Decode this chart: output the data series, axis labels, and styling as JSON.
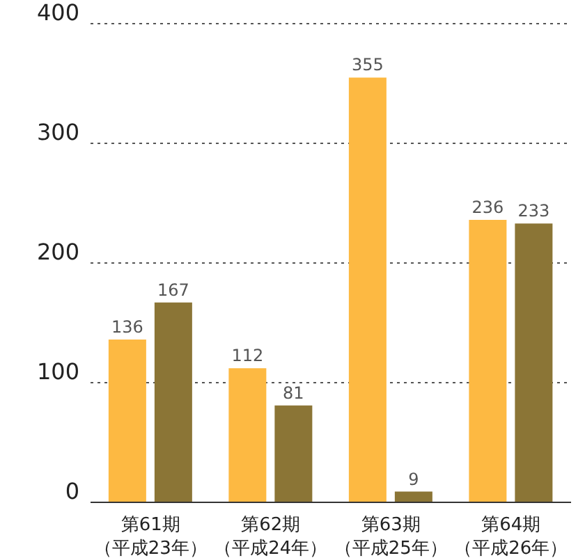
{
  "chart_data": {
    "type": "bar",
    "categories": [
      "第61期（平成23年）",
      "第62期（平成24年）",
      "第63期（平成25年）",
      "第64期（平成26年）"
    ],
    "series": [
      {
        "color": "#fdb942",
        "values": [
          136,
          112,
          355,
          236
        ]
      },
      {
        "color": "#8b7536",
        "values": [
          167,
          81,
          9,
          233
        ]
      }
    ],
    "ylim": [
      0,
      400
    ],
    "yticks": [
      0,
      100,
      200,
      300,
      400
    ],
    "grid": "y",
    "data_labels": true,
    "legend": false
  }
}
